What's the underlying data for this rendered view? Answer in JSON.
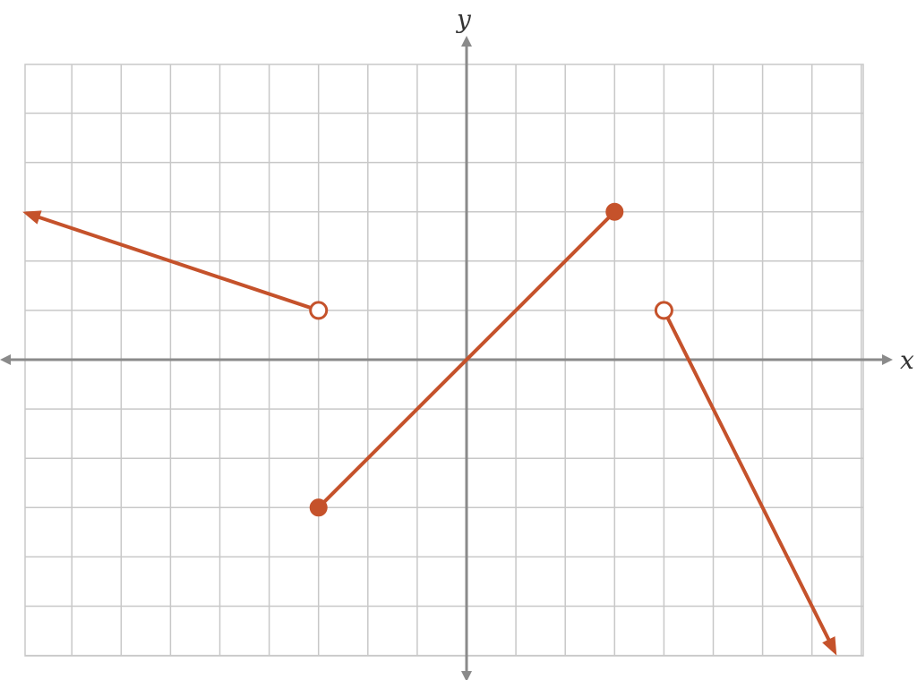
{
  "chart_data": {
    "type": "line",
    "xlabel": "x",
    "ylabel": "y",
    "xlim": [
      -9,
      8
    ],
    "ylim": [
      -6,
      6
    ],
    "grid": true,
    "series": [
      {
        "segment": "left-ray",
        "points": [
          [
            -9,
            3
          ],
          [
            -3,
            1
          ]
        ],
        "start": "arrow",
        "end": "open"
      },
      {
        "segment": "middle-segment",
        "points": [
          [
            -3,
            -3
          ],
          [
            3,
            3
          ]
        ],
        "start": "closed",
        "end": "closed"
      },
      {
        "segment": "right-ray",
        "points": [
          [
            4,
            1
          ],
          [
            7.5,
            -6
          ]
        ],
        "start": "open",
        "end": "arrow"
      }
    ]
  },
  "colors": {
    "line": "#c5522b",
    "axis": "#8a8a8a",
    "grid": "#c8c8c8",
    "open_fill": "#ffffff"
  }
}
